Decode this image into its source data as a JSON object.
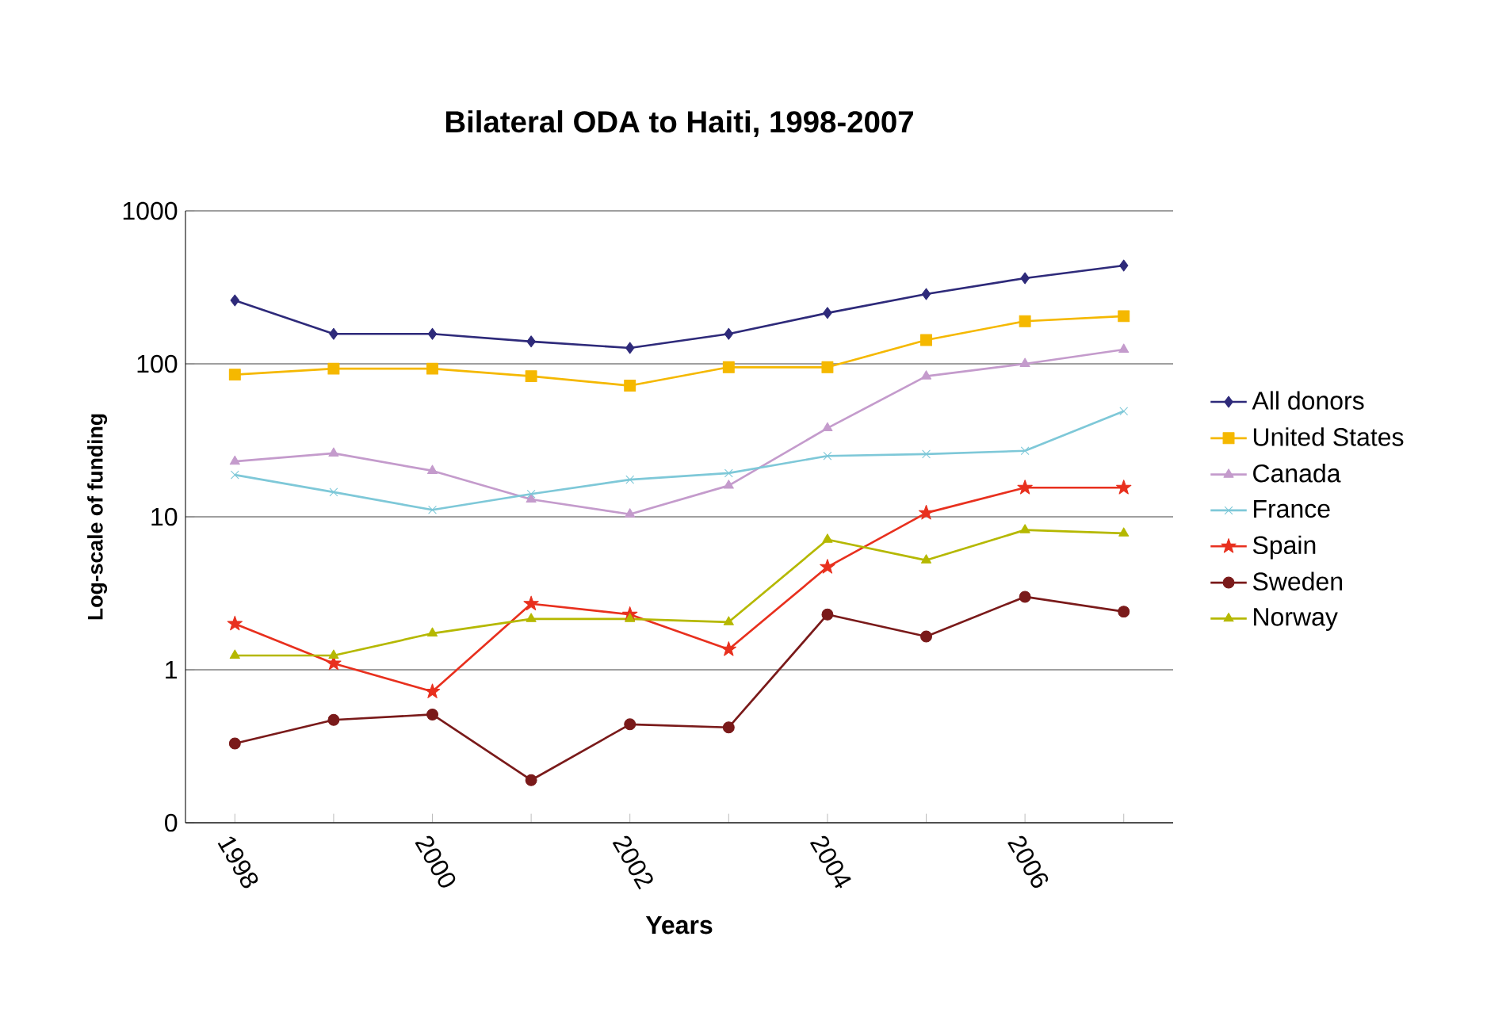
{
  "chart_data": {
    "type": "line",
    "title": "Bilateral ODA to Haiti, 1998-2007",
    "xlabel": "Years",
    "ylabel": "Log-scale of funding",
    "categories": [
      "1998",
      null,
      "2000",
      null,
      "2002",
      null,
      "2004",
      null,
      "2006",
      null
    ],
    "log": "y",
    "ylim": [
      0.1,
      1000
    ],
    "yticks": [
      {
        "value": 0.1,
        "label": "0"
      },
      1,
      10,
      100,
      1000
    ],
    "grid": "y",
    "legend": "right",
    "series": [
      {
        "name": "All donors",
        "color": "#2e2a7a",
        "marker": "diamond",
        "values": [
          260,
          157,
          157,
          140,
          127,
          157,
          215,
          286,
          363,
          439
        ]
      },
      {
        "name": "United States",
        "color": "#f5b800",
        "marker": "square",
        "values": [
          85,
          93,
          93,
          83,
          72,
          95,
          95,
          143,
          190,
          205
        ]
      },
      {
        "name": "Canada",
        "color": "#c49bcc",
        "marker": "triangle",
        "values": [
          23,
          26,
          20,
          13,
          10.4,
          16,
          38,
          83,
          100,
          124
        ]
      },
      {
        "name": "France",
        "color": "#7ec8d8",
        "marker": "cross",
        "values": [
          18.8,
          14.5,
          11.1,
          14.1,
          17.5,
          19.3,
          25,
          25.7,
          27,
          49
        ]
      },
      {
        "name": "Spain",
        "color": "#e8301e",
        "marker": "star",
        "values": [
          2.0,
          1.1,
          0.72,
          2.7,
          2.3,
          1.36,
          4.7,
          10.6,
          15.5,
          15.5
        ]
      },
      {
        "name": "Sweden",
        "color": "#7a1a1a",
        "marker": "circle",
        "values": [
          0.33,
          0.47,
          0.51,
          0.19,
          0.44,
          0.42,
          2.3,
          1.65,
          3.0,
          2.4
        ]
      },
      {
        "name": "Norway",
        "color": "#b5b800",
        "marker": "triangle",
        "values": [
          1.24,
          1.24,
          1.73,
          2.15,
          2.15,
          2.05,
          7.1,
          5.2,
          8.2,
          7.8
        ]
      }
    ]
  }
}
